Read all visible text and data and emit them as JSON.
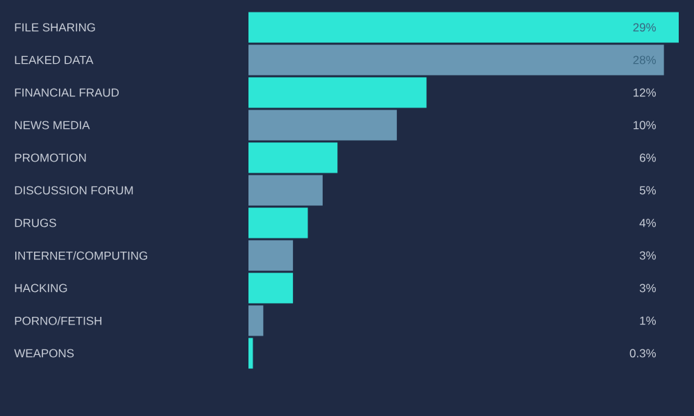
{
  "chart_data": {
    "type": "bar",
    "orientation": "horizontal",
    "categories": [
      "FILE SHARING",
      "LEAKED DATA",
      "FINANCIAL FRAUD",
      "NEWS MEDIA",
      "PROMOTION",
      "DISCUSSION FORUM",
      "DRUGS",
      "INTERNET/COMPUTING",
      "HACKING",
      "PORNO/FETISH",
      "WEAPONS"
    ],
    "values": [
      29,
      28,
      12,
      10,
      6,
      5,
      4,
      3,
      3,
      1,
      0.3
    ],
    "colors": [
      "#2ee6d6",
      "#6a98b4",
      "#2ee6d6",
      "#6a98b4",
      "#2ee6d6",
      "#6a98b4",
      "#2ee6d6",
      "#6a98b4",
      "#2ee6d6",
      "#6a98b4",
      "#2ee6d6"
    ],
    "value_labels": [
      "29%",
      "28%",
      "12%",
      "10%",
      "6%",
      "5%",
      "4%",
      "3%",
      "3%",
      "1%",
      "0.3%"
    ]
  }
}
